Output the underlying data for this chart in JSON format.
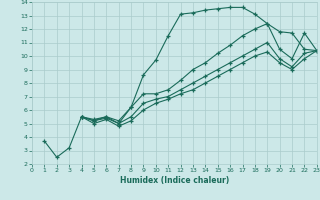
{
  "xlabel": "Humidex (Indice chaleur)",
  "bg_color": "#cce8e8",
  "grid_color": "#aacccc",
  "line_color": "#1a6b5a",
  "xlim": [
    0,
    23
  ],
  "ylim": [
    2,
    14
  ],
  "xticks": [
    0,
    1,
    2,
    3,
    4,
    5,
    6,
    7,
    8,
    9,
    10,
    11,
    12,
    13,
    14,
    15,
    16,
    17,
    18,
    19,
    20,
    21,
    22,
    23
  ],
  "yticks": [
    2,
    3,
    4,
    5,
    6,
    7,
    8,
    9,
    10,
    11,
    12,
    13,
    14
  ],
  "lines": [
    {
      "x": [
        1,
        2,
        3,
        4,
        5,
        6,
        7,
        8,
        9,
        10,
        11,
        12,
        13,
        14,
        15,
        16,
        17,
        18,
        19,
        20,
        21,
        22,
        23
      ],
      "y": [
        3.7,
        2.5,
        3.2,
        5.5,
        5.3,
        5.5,
        5.2,
        6.2,
        8.6,
        9.7,
        11.5,
        13.1,
        13.2,
        13.4,
        13.5,
        13.6,
        13.6,
        13.1,
        12.4,
        11.8,
        11.7,
        10.5,
        10.4
      ]
    },
    {
      "x": [
        4,
        5,
        6,
        7,
        8,
        9,
        10,
        11,
        12,
        13,
        14,
        15,
        16,
        17,
        18,
        19,
        20,
        21,
        22,
        23
      ],
      "y": [
        5.5,
        5.2,
        5.5,
        5.0,
        6.2,
        7.2,
        7.2,
        7.5,
        8.2,
        9.0,
        9.5,
        10.2,
        10.8,
        11.5,
        12.0,
        12.4,
        10.5,
        9.8,
        11.7,
        10.4
      ]
    },
    {
      "x": [
        4,
        5,
        6,
        7,
        8,
        9,
        10,
        11,
        12,
        13,
        14,
        15,
        16,
        17,
        18,
        19,
        20,
        21,
        22,
        23
      ],
      "y": [
        5.5,
        5.2,
        5.4,
        5.0,
        5.5,
        6.5,
        6.8,
        7.0,
        7.5,
        8.0,
        8.5,
        9.0,
        9.5,
        10.0,
        10.5,
        11.0,
        9.8,
        9.2,
        10.2,
        10.4
      ]
    },
    {
      "x": [
        4,
        5,
        6,
        7,
        8,
        9,
        10,
        11,
        12,
        13,
        14,
        15,
        16,
        17,
        18,
        19,
        20,
        21,
        22,
        23
      ],
      "y": [
        5.5,
        5.0,
        5.3,
        4.8,
        5.2,
        6.0,
        6.5,
        6.8,
        7.2,
        7.5,
        8.0,
        8.5,
        9.0,
        9.5,
        10.0,
        10.3,
        9.5,
        9.0,
        9.8,
        10.4
      ]
    }
  ]
}
